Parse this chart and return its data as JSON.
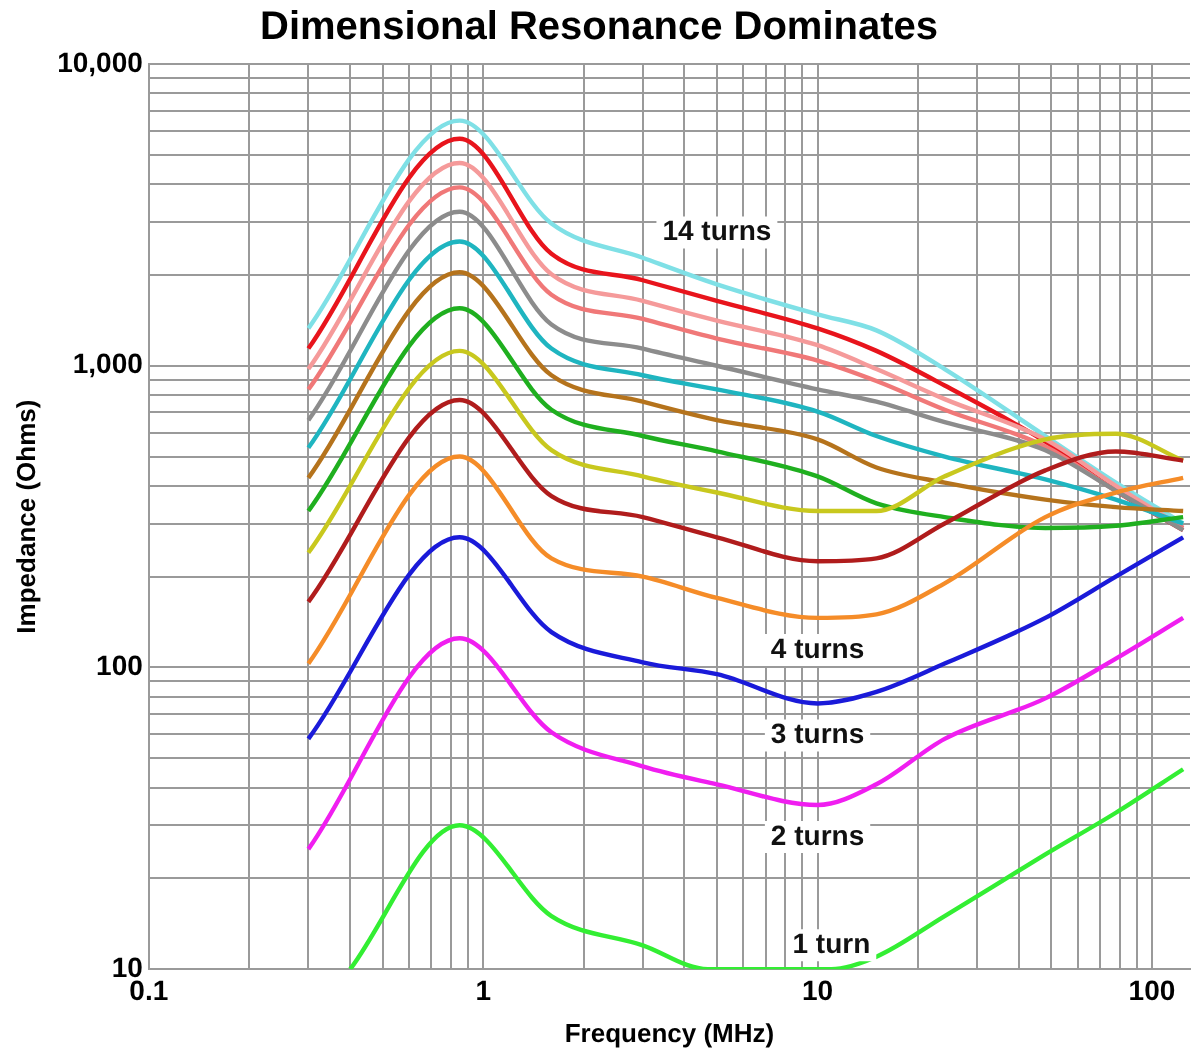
{
  "chart_data": {
    "type": "line",
    "title": "Dimensional Resonance Dominates",
    "xlabel": "Frequency (MHz)",
    "ylabel": "Impedance (Ohms)",
    "log": "xy",
    "grid": true,
    "legend": false,
    "xlim": [
      0.1,
      130
    ],
    "ylim": [
      10,
      10000
    ],
    "xticks": [
      0.1,
      {
        "value": 0.2,
        "label": null
      },
      {
        "value": 0.3,
        "label": null
      },
      {
        "value": 0.4,
        "label": null
      },
      {
        "value": 0.5,
        "label": null
      },
      {
        "value": 0.6,
        "label": null
      },
      {
        "value": 0.7,
        "label": null
      },
      {
        "value": 0.8,
        "label": null
      },
      {
        "value": 0.9,
        "label": null
      },
      1,
      {
        "value": 2,
        "label": null
      },
      {
        "value": 3,
        "label": null
      },
      {
        "value": 4,
        "label": null
      },
      {
        "value": 5,
        "label": null
      },
      {
        "value": 6,
        "label": null
      },
      {
        "value": 7,
        "label": null
      },
      {
        "value": 8,
        "label": null
      },
      {
        "value": 9,
        "label": null
      },
      10,
      {
        "value": 20,
        "label": null
      },
      {
        "value": 30,
        "label": null
      },
      {
        "value": 40,
        "label": null
      },
      {
        "value": 50,
        "label": null
      },
      {
        "value": 60,
        "label": null
      },
      {
        "value": 70,
        "label": null
      },
      {
        "value": 80,
        "label": null
      },
      {
        "value": 90,
        "label": null
      },
      100
    ],
    "yticks": [
      10,
      {
        "value": 20,
        "label": null
      },
      {
        "value": 30,
        "label": null
      },
      {
        "value": 40,
        "label": null
      },
      {
        "value": 50,
        "label": null
      },
      {
        "value": 60,
        "label": null
      },
      {
        "value": 70,
        "label": null
      },
      {
        "value": 80,
        "label": null
      },
      {
        "value": 90,
        "label": null
      },
      100,
      {
        "value": 200,
        "label": null
      },
      {
        "value": 300,
        "label": null
      },
      {
        "value": 400,
        "label": null
      },
      {
        "value": 500,
        "label": null
      },
      {
        "value": 600,
        "label": null
      },
      {
        "value": 700,
        "label": null
      },
      {
        "value": 800,
        "label": null
      },
      {
        "value": 900,
        "label": null
      },
      {
        "value": 1000,
        "label": "1,000"
      },
      {
        "value": 2000,
        "label": null
      },
      {
        "value": 3000,
        "label": null
      },
      {
        "value": 4000,
        "label": null
      },
      {
        "value": 5000,
        "label": null
      },
      {
        "value": 6000,
        "label": null
      },
      {
        "value": 7000,
        "label": null
      },
      {
        "value": 8000,
        "label": null
      },
      {
        "value": 9000,
        "label": null
      },
      {
        "value": 10000,
        "label": "10,000"
      }
    ],
    "x": [
      0.3,
      0.85,
      1.6,
      3,
      5,
      10,
      15,
      24,
      48,
      78,
      124
    ],
    "series": [
      {
        "name": "1 turn",
        "color": "#33ee33",
        "x": [
          0.4,
          0.85,
          1.6,
          3,
          4.7,
          11,
          15,
          24,
          48,
          78,
          124
        ],
        "values": [
          10,
          30,
          15,
          12,
          10,
          10,
          11,
          15,
          24,
          33,
          46
        ]
      },
      {
        "name": "2 turns",
        "color": "#f01ef0",
        "values": [
          25,
          125,
          61,
          47,
          41,
          35,
          41,
          58,
          79,
          107,
          146
        ]
      },
      {
        "name": "3 turns",
        "color": "#1a1ad9",
        "values": [
          58,
          270,
          131,
          104,
          95,
          76,
          83,
          103,
          146,
          200,
          270
        ]
      },
      {
        "name": "4 turns",
        "color": "#f58c28",
        "values": [
          103,
          500,
          230,
          200,
          170,
          146,
          150,
          190,
          315,
          380,
          425
        ]
      },
      {
        "color": "#b01c1c",
        "values": [
          165,
          770,
          370,
          315,
          270,
          225,
          230,
          300,
          450,
          520,
          485
        ]
      },
      {
        "color": "#c8c81e",
        "values": [
          240,
          1120,
          525,
          430,
          380,
          330,
          330,
          430,
          570,
          595,
          485
        ]
      },
      {
        "color": "#1faf1f",
        "values": [
          330,
          1550,
          715,
          585,
          520,
          430,
          350,
          315,
          290,
          295,
          315
        ]
      },
      {
        "color": "#b5731c",
        "values": [
          425,
          2040,
          930,
          760,
          660,
          570,
          460,
          410,
          360,
          340,
          330
        ]
      },
      {
        "color": "#1fb5c0",
        "values": [
          535,
          2580,
          1140,
          930,
          835,
          705,
          585,
          500,
          420,
          360,
          300
        ]
      },
      {
        "color": "#8c8c8c",
        "values": [
          660,
          3240,
          1370,
          1140,
          1000,
          835,
          760,
          650,
          525,
          385,
          285
        ]
      },
      {
        "color": "#f07878",
        "values": [
          835,
          3900,
          1720,
          1430,
          1230,
          1040,
          890,
          715,
          540,
          385,
          290
        ]
      },
      {
        "color": "#f59a9a",
        "values": [
          975,
          4700,
          2010,
          1640,
          1410,
          1170,
          975,
          775,
          570,
          400,
          290
        ]
      },
      {
        "color": "#e8141c",
        "values": [
          1140,
          5650,
          2350,
          1920,
          1640,
          1330,
          1120,
          860,
          560,
          385,
          285
        ]
      },
      {
        "name": "14 turns",
        "color": "#7fe0e6",
        "values": [
          1330,
          6490,
          2960,
          2280,
          1860,
          1480,
          1310,
          975,
          585,
          410,
          300
        ]
      }
    ]
  }
}
